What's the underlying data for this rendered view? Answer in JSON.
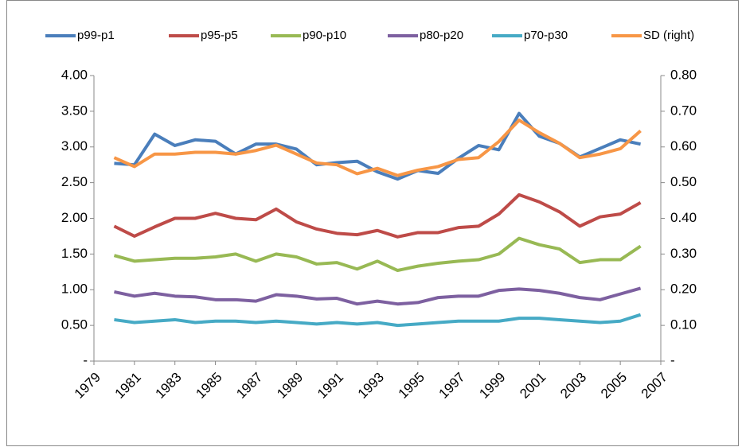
{
  "chart_data": {
    "type": "line",
    "x": [
      1980,
      1981,
      1982,
      1983,
      1984,
      1985,
      1986,
      1987,
      1988,
      1989,
      1990,
      1991,
      1992,
      1993,
      1994,
      1995,
      1996,
      1997,
      1998,
      1999,
      2000,
      2001,
      2002,
      2003,
      2004,
      2005,
      2006
    ],
    "xlim": [
      1979,
      2007
    ],
    "xticks": [
      1979,
      1981,
      1983,
      1985,
      1987,
      1989,
      1991,
      1993,
      1995,
      1997,
      1999,
      2001,
      2003,
      2005,
      2007
    ],
    "ylim": [
      0,
      4
    ],
    "yticks": [
      {
        "value": 0,
        "label": "-"
      },
      {
        "value": 0.5,
        "label": "0.50"
      },
      {
        "value": 1,
        "label": "1.00"
      },
      {
        "value": 1.5,
        "label": "1.50"
      },
      {
        "value": 2,
        "label": "2.00"
      },
      {
        "value": 2.5,
        "label": "2.50"
      },
      {
        "value": 3,
        "label": "3.00"
      },
      {
        "value": 3.5,
        "label": "3.50"
      },
      {
        "value": 4,
        "label": "4.00"
      }
    ],
    "y2lim": [
      0,
      0.8
    ],
    "y2ticks": [
      {
        "value": 0,
        "label": "-"
      },
      {
        "value": 0.1,
        "label": "0.10"
      },
      {
        "value": 0.2,
        "label": "0.20"
      },
      {
        "value": 0.3,
        "label": "0.30"
      },
      {
        "value": 0.4,
        "label": "0.40"
      },
      {
        "value": 0.5,
        "label": "0.50"
      },
      {
        "value": 0.6,
        "label": "0.60"
      },
      {
        "value": 0.7,
        "label": "0.70"
      },
      {
        "value": 0.8,
        "label": "0.80"
      }
    ],
    "legend": "top",
    "series": [
      {
        "name": "p99-p1",
        "color": "#4a7ebb",
        "values": [
          2.77,
          2.75,
          3.18,
          3.02,
          3.1,
          3.08,
          2.9,
          3.04,
          3.04,
          2.97,
          2.75,
          2.78,
          2.8,
          2.65,
          2.55,
          2.67,
          2.63,
          2.84,
          3.02,
          2.96,
          3.47,
          3.15,
          3.05,
          2.86,
          2.98,
          3.1,
          3.04
        ]
      },
      {
        "name": "p95-p5",
        "color": "#be4b48",
        "values": [
          1.89,
          1.75,
          1.88,
          2.0,
          2.0,
          2.07,
          2.0,
          1.98,
          2.13,
          1.95,
          1.85,
          1.79,
          1.77,
          1.83,
          1.74,
          1.8,
          1.8,
          1.87,
          1.89,
          2.06,
          2.33,
          2.23,
          2.09,
          1.89,
          2.02,
          2.06,
          2.22
        ]
      },
      {
        "name": "p90-p10",
        "color": "#98b954",
        "values": [
          1.48,
          1.4,
          1.42,
          1.44,
          1.44,
          1.46,
          1.5,
          1.4,
          1.5,
          1.46,
          1.36,
          1.38,
          1.29,
          1.4,
          1.27,
          1.33,
          1.37,
          1.4,
          1.42,
          1.5,
          1.72,
          1.63,
          1.57,
          1.38,
          1.42,
          1.42,
          1.61
        ]
      },
      {
        "name": "p80-p20",
        "color": "#7d60a0",
        "values": [
          0.97,
          0.91,
          0.95,
          0.91,
          0.9,
          0.86,
          0.86,
          0.84,
          0.93,
          0.91,
          0.87,
          0.88,
          0.8,
          0.84,
          0.8,
          0.82,
          0.89,
          0.91,
          0.91,
          0.99,
          1.01,
          0.99,
          0.95,
          0.89,
          0.86,
          0.94,
          1.02
        ]
      },
      {
        "name": "p70-p30",
        "color": "#46aac5",
        "values": [
          0.58,
          0.54,
          0.56,
          0.58,
          0.54,
          0.56,
          0.56,
          0.54,
          0.56,
          0.54,
          0.52,
          0.54,
          0.52,
          0.54,
          0.5,
          0.52,
          0.54,
          0.56,
          0.56,
          0.56,
          0.6,
          0.6,
          0.58,
          0.56,
          0.54,
          0.56,
          0.65
        ]
      },
      {
        "name": "SD (right)",
        "color": "#f79646",
        "axis": "y2",
        "values": [
          0.57,
          0.545,
          0.58,
          0.58,
          0.585,
          0.585,
          0.58,
          0.59,
          0.605,
          0.58,
          0.555,
          0.55,
          0.525,
          0.54,
          0.52,
          0.535,
          0.545,
          0.565,
          0.57,
          0.615,
          0.675,
          0.64,
          0.61,
          0.57,
          0.58,
          0.595,
          0.645
        ]
      }
    ]
  }
}
